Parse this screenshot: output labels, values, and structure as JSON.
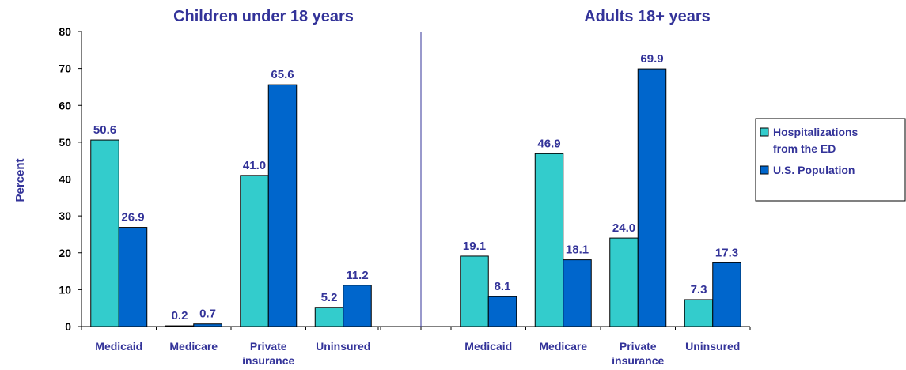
{
  "chart_data": {
    "type": "bar",
    "ylabel": "Percent",
    "ylim": [
      0,
      80
    ],
    "yticks": [
      0,
      10,
      20,
      30,
      40,
      50,
      60,
      70,
      80
    ],
    "grid": false,
    "legend_placement": "right",
    "colors": {
      "hospitalizations": "#33cccc",
      "population": "#0066cc",
      "text": "#333399"
    },
    "series_names": [
      "Hospitalizations from the ED",
      "U.S. Population"
    ],
    "legend_lines": [
      [
        "Hospitalizations",
        "from the ED"
      ],
      [
        "U.S. Population"
      ]
    ],
    "panels": [
      {
        "title": "Children under 18 years",
        "categories": [
          [
            "Medicaid"
          ],
          [
            "Medicare"
          ],
          [
            "Private",
            "insurance"
          ],
          [
            "Uninsured"
          ]
        ],
        "series": [
          {
            "name": "Hospitalizations from the ED",
            "values": [
              50.6,
              0.2,
              41.0,
              5.2
            ],
            "labels": [
              "50.6",
              "0.2",
              "41.0",
              "5.2"
            ]
          },
          {
            "name": "U.S. Population",
            "values": [
              26.9,
              0.7,
              65.6,
              11.2
            ],
            "labels": [
              "26.9",
              "0.7",
              "65.6",
              "11.2"
            ]
          }
        ]
      },
      {
        "title": "Adults 18+ years",
        "categories": [
          [
            "Medicaid"
          ],
          [
            "Medicare"
          ],
          [
            "Private",
            "insurance"
          ],
          [
            "Uninsured"
          ]
        ],
        "series": [
          {
            "name": "Hospitalizations from the ED",
            "values": [
              19.1,
              46.9,
              24.0,
              7.3
            ],
            "labels": [
              "19.1",
              "46.9",
              "24.0",
              "7.3"
            ]
          },
          {
            "name": "U.S. Population",
            "values": [
              8.1,
              18.1,
              69.9,
              17.3
            ],
            "labels": [
              "8.1",
              "18.1",
              "69.9",
              "17.3"
            ]
          }
        ]
      }
    ]
  }
}
